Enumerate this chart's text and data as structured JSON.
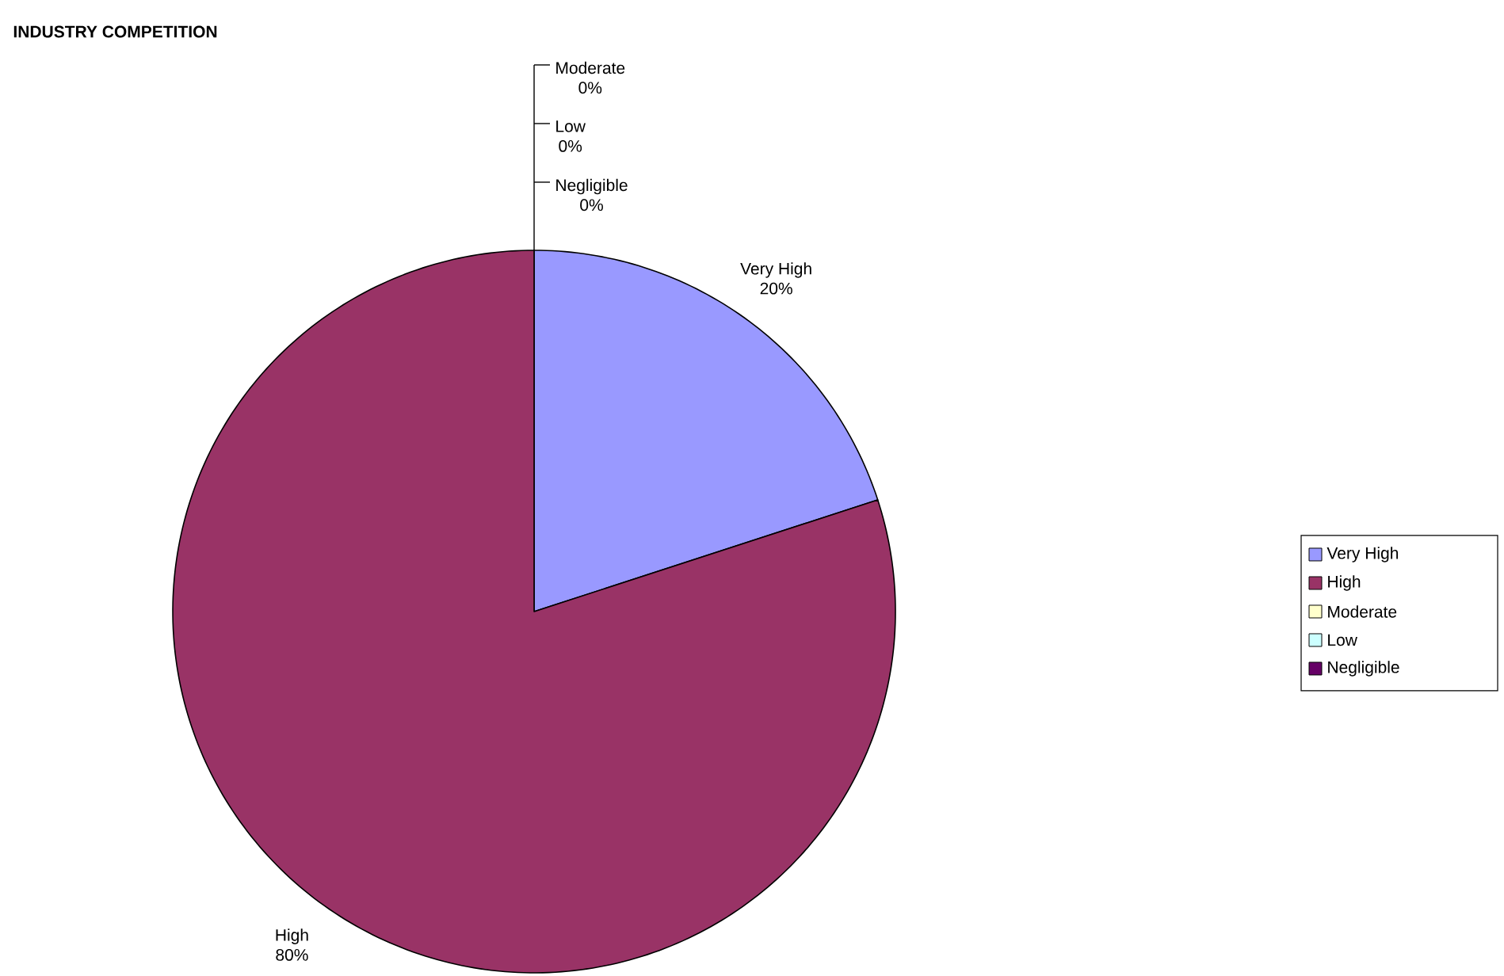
{
  "chart_data": {
    "type": "pie",
    "title": "INDUSTRY COMPETITION",
    "categories": [
      "Very High",
      "High",
      "Moderate",
      "Low",
      "Negligible"
    ],
    "values": [
      20,
      80,
      0,
      0,
      0
    ],
    "value_labels": [
      "20%",
      "80%",
      "0%",
      "0%",
      "0%"
    ],
    "colors": [
      "#9999ff",
      "#993366",
      "#ffffcc",
      "#ccffff",
      "#660066"
    ],
    "legend": "right"
  }
}
